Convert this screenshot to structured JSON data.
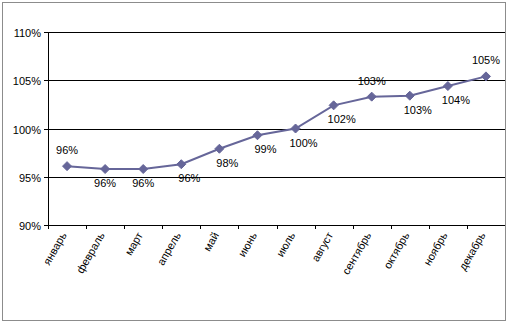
{
  "chart_data": {
    "type": "line",
    "categories": [
      "январь",
      "февраль",
      "март",
      "апрель",
      "май",
      "июнь",
      "июль",
      "август",
      "сентябрь",
      "октябрь",
      "ноябрь",
      "декабрь"
    ],
    "values": [
      96.1,
      95.8,
      95.8,
      96.3,
      97.9,
      99.3,
      100.0,
      102.4,
      103.3,
      103.4,
      104.4,
      105.4
    ],
    "value_labels": [
      "96%",
      "96%",
      "96%",
      "96%",
      "98%",
      "99%",
      "100%",
      "102%",
      "103%",
      "103%",
      "104%",
      "105%"
    ],
    "color": "#666699",
    "marker": "diamond",
    "ylim": [
      90,
      110
    ],
    "yticks": [
      {
        "value": 90,
        "label": "90%"
      },
      {
        "value": 95,
        "label": "95%"
      },
      {
        "value": 100,
        "label": "100%"
      },
      {
        "value": 105,
        "label": "105%"
      },
      {
        "value": 110,
        "label": "110%"
      }
    ],
    "grid": true,
    "data_labels": true
  }
}
